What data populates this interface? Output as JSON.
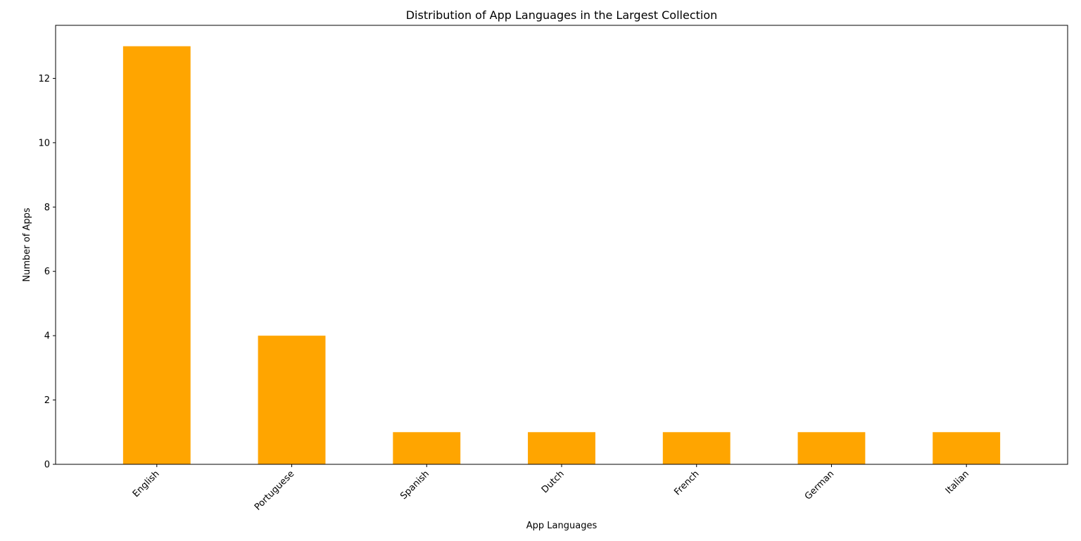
{
  "chart_data": {
    "type": "bar",
    "title": "Distribution of App Languages in the Largest Collection",
    "xlabel": "App Languages",
    "ylabel": "Number of Apps",
    "categories": [
      "English",
      "Portuguese",
      "Spanish",
      "Dutch",
      "French",
      "German",
      "Italian"
    ],
    "values": [
      13,
      4,
      1,
      1,
      1,
      1,
      1
    ],
    "ylim": [
      0,
      13.65
    ],
    "yticks": [
      0,
      2,
      4,
      6,
      8,
      10,
      12
    ],
    "bar_color": "#ffa500",
    "grid": false,
    "legend": "none"
  }
}
